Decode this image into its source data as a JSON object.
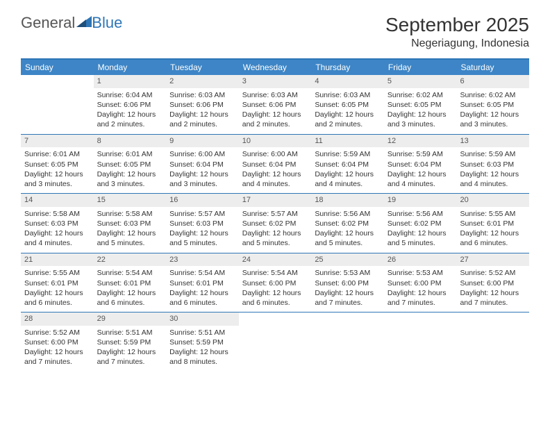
{
  "logo": {
    "text1": "General",
    "text2": "Blue"
  },
  "title": "September 2025",
  "location": "Negeriagung, Indonesia",
  "colors": {
    "header_bar": "#3d85c6",
    "divider": "#2e75b6",
    "daynum_bg": "#ededed",
    "text": "#333333",
    "weekday_text": "#ffffff"
  },
  "fonts": {
    "title_size": 28,
    "location_size": 16,
    "weekday_size": 12,
    "body_size": 10.5
  },
  "weekdays": [
    "Sunday",
    "Monday",
    "Tuesday",
    "Wednesday",
    "Thursday",
    "Friday",
    "Saturday"
  ],
  "weeks": [
    [
      {
        "n": "",
        "sr": "",
        "ss": "",
        "dl": ""
      },
      {
        "n": "1",
        "sr": "Sunrise: 6:04 AM",
        "ss": "Sunset: 6:06 PM",
        "dl": "Daylight: 12 hours and 2 minutes."
      },
      {
        "n": "2",
        "sr": "Sunrise: 6:03 AM",
        "ss": "Sunset: 6:06 PM",
        "dl": "Daylight: 12 hours and 2 minutes."
      },
      {
        "n": "3",
        "sr": "Sunrise: 6:03 AM",
        "ss": "Sunset: 6:06 PM",
        "dl": "Daylight: 12 hours and 2 minutes."
      },
      {
        "n": "4",
        "sr": "Sunrise: 6:03 AM",
        "ss": "Sunset: 6:05 PM",
        "dl": "Daylight: 12 hours and 2 minutes."
      },
      {
        "n": "5",
        "sr": "Sunrise: 6:02 AM",
        "ss": "Sunset: 6:05 PM",
        "dl": "Daylight: 12 hours and 3 minutes."
      },
      {
        "n": "6",
        "sr": "Sunrise: 6:02 AM",
        "ss": "Sunset: 6:05 PM",
        "dl": "Daylight: 12 hours and 3 minutes."
      }
    ],
    [
      {
        "n": "7",
        "sr": "Sunrise: 6:01 AM",
        "ss": "Sunset: 6:05 PM",
        "dl": "Daylight: 12 hours and 3 minutes."
      },
      {
        "n": "8",
        "sr": "Sunrise: 6:01 AM",
        "ss": "Sunset: 6:05 PM",
        "dl": "Daylight: 12 hours and 3 minutes."
      },
      {
        "n": "9",
        "sr": "Sunrise: 6:00 AM",
        "ss": "Sunset: 6:04 PM",
        "dl": "Daylight: 12 hours and 3 minutes."
      },
      {
        "n": "10",
        "sr": "Sunrise: 6:00 AM",
        "ss": "Sunset: 6:04 PM",
        "dl": "Daylight: 12 hours and 4 minutes."
      },
      {
        "n": "11",
        "sr": "Sunrise: 5:59 AM",
        "ss": "Sunset: 6:04 PM",
        "dl": "Daylight: 12 hours and 4 minutes."
      },
      {
        "n": "12",
        "sr": "Sunrise: 5:59 AM",
        "ss": "Sunset: 6:04 PM",
        "dl": "Daylight: 12 hours and 4 minutes."
      },
      {
        "n": "13",
        "sr": "Sunrise: 5:59 AM",
        "ss": "Sunset: 6:03 PM",
        "dl": "Daylight: 12 hours and 4 minutes."
      }
    ],
    [
      {
        "n": "14",
        "sr": "Sunrise: 5:58 AM",
        "ss": "Sunset: 6:03 PM",
        "dl": "Daylight: 12 hours and 4 minutes."
      },
      {
        "n": "15",
        "sr": "Sunrise: 5:58 AM",
        "ss": "Sunset: 6:03 PM",
        "dl": "Daylight: 12 hours and 5 minutes."
      },
      {
        "n": "16",
        "sr": "Sunrise: 5:57 AM",
        "ss": "Sunset: 6:03 PM",
        "dl": "Daylight: 12 hours and 5 minutes."
      },
      {
        "n": "17",
        "sr": "Sunrise: 5:57 AM",
        "ss": "Sunset: 6:02 PM",
        "dl": "Daylight: 12 hours and 5 minutes."
      },
      {
        "n": "18",
        "sr": "Sunrise: 5:56 AM",
        "ss": "Sunset: 6:02 PM",
        "dl": "Daylight: 12 hours and 5 minutes."
      },
      {
        "n": "19",
        "sr": "Sunrise: 5:56 AM",
        "ss": "Sunset: 6:02 PM",
        "dl": "Daylight: 12 hours and 5 minutes."
      },
      {
        "n": "20",
        "sr": "Sunrise: 5:55 AM",
        "ss": "Sunset: 6:01 PM",
        "dl": "Daylight: 12 hours and 6 minutes."
      }
    ],
    [
      {
        "n": "21",
        "sr": "Sunrise: 5:55 AM",
        "ss": "Sunset: 6:01 PM",
        "dl": "Daylight: 12 hours and 6 minutes."
      },
      {
        "n": "22",
        "sr": "Sunrise: 5:54 AM",
        "ss": "Sunset: 6:01 PM",
        "dl": "Daylight: 12 hours and 6 minutes."
      },
      {
        "n": "23",
        "sr": "Sunrise: 5:54 AM",
        "ss": "Sunset: 6:01 PM",
        "dl": "Daylight: 12 hours and 6 minutes."
      },
      {
        "n": "24",
        "sr": "Sunrise: 5:54 AM",
        "ss": "Sunset: 6:00 PM",
        "dl": "Daylight: 12 hours and 6 minutes."
      },
      {
        "n": "25",
        "sr": "Sunrise: 5:53 AM",
        "ss": "Sunset: 6:00 PM",
        "dl": "Daylight: 12 hours and 7 minutes."
      },
      {
        "n": "26",
        "sr": "Sunrise: 5:53 AM",
        "ss": "Sunset: 6:00 PM",
        "dl": "Daylight: 12 hours and 7 minutes."
      },
      {
        "n": "27",
        "sr": "Sunrise: 5:52 AM",
        "ss": "Sunset: 6:00 PM",
        "dl": "Daylight: 12 hours and 7 minutes."
      }
    ],
    [
      {
        "n": "28",
        "sr": "Sunrise: 5:52 AM",
        "ss": "Sunset: 6:00 PM",
        "dl": "Daylight: 12 hours and 7 minutes."
      },
      {
        "n": "29",
        "sr": "Sunrise: 5:51 AM",
        "ss": "Sunset: 5:59 PM",
        "dl": "Daylight: 12 hours and 7 minutes."
      },
      {
        "n": "30",
        "sr": "Sunrise: 5:51 AM",
        "ss": "Sunset: 5:59 PM",
        "dl": "Daylight: 12 hours and 8 minutes."
      },
      {
        "n": "",
        "sr": "",
        "ss": "",
        "dl": ""
      },
      {
        "n": "",
        "sr": "",
        "ss": "",
        "dl": ""
      },
      {
        "n": "",
        "sr": "",
        "ss": "",
        "dl": ""
      },
      {
        "n": "",
        "sr": "",
        "ss": "",
        "dl": ""
      }
    ]
  ]
}
